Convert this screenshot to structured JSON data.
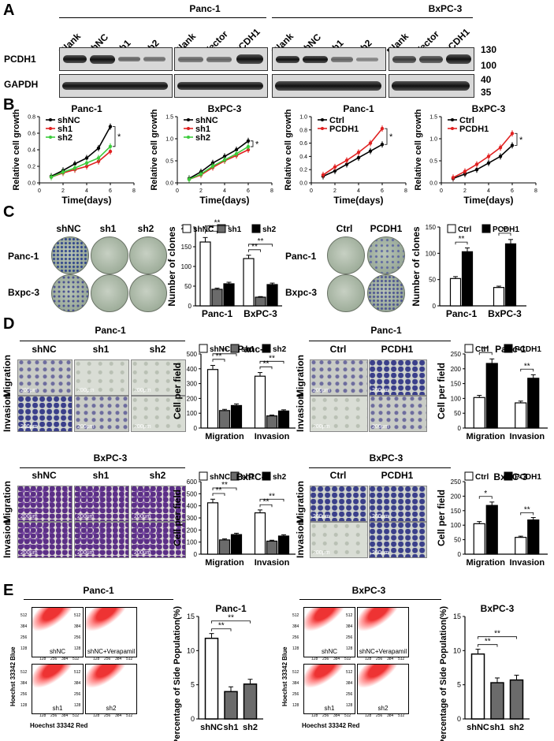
{
  "panels": {
    "A": "A",
    "B": "B",
    "C": "C",
    "D": "D",
    "E": "E"
  },
  "panelA": {
    "groups": [
      "Panc-1",
      "BxPC-3"
    ],
    "lanes_left": [
      "Blank",
      "shNC",
      "sh1",
      "sh2"
    ],
    "lanes_right": [
      "Blank",
      "Vector",
      "PCDH1"
    ],
    "rows": [
      "PCDH1",
      "GAPDH"
    ],
    "markers": [
      "130",
      "100",
      "40",
      "35"
    ]
  },
  "panelB": {
    "ylabel": "Relative cell growth",
    "xlabel": "Time(days)",
    "xticks": [
      "0",
      "2",
      "4",
      "6",
      "8"
    ],
    "charts": [
      {
        "title": "Panc-1",
        "yticks": [
          "0.0",
          "0.2",
          "0.4",
          "0.6",
          "0.8"
        ]
      },
      {
        "title": "BxPC-3",
        "yticks": [
          "0.0",
          "0.5",
          "1.0",
          "1.5"
        ]
      },
      {
        "title": "Panc-1",
        "yticks": [
          "0.0",
          "0.2",
          "0.4",
          "0.6",
          "0.8",
          "1.0"
        ]
      },
      {
        "title": "BxPC-3",
        "yticks": [
          "0.0",
          "0.5",
          "1.0",
          "1.5"
        ]
      }
    ],
    "legend_kd": [
      "shNC",
      "sh1",
      "sh2"
    ],
    "legend_oe": [
      "Ctrl",
      "PCDH1"
    ],
    "colors": {
      "shNC": "#000000",
      "sh1": "#e02020",
      "sh2": "#3ccc3c",
      "Ctrl": "#000000",
      "PCDH1": "#e02020"
    },
    "sig": "*"
  },
  "panelC": {
    "cols_kd": [
      "shNC",
      "sh1",
      "sh2"
    ],
    "cols_oe": [
      "Ctrl",
      "PCDH1"
    ],
    "rows": [
      "Panc-1",
      "Bxpc-3"
    ],
    "ylabel": "Number of clones",
    "xcats_kd": [
      "Panc-1",
      "BxPC-3"
    ],
    "xcats_oe": [
      "Panc-1",
      "BxPC-3"
    ],
    "yticks_kd": [
      "0",
      "50",
      "100",
      "150",
      "200"
    ],
    "yticks_oe": [
      "0",
      "50",
      "100",
      "150"
    ],
    "sig": "**"
  },
  "panelD": {
    "titles": [
      "Panc-1",
      "Panc-1",
      "BxPC-3",
      "BxPC-3"
    ],
    "cols_kd": [
      "shNC",
      "sh1",
      "sh2"
    ],
    "cols_oe": [
      "Ctrl",
      "PCDH1"
    ],
    "row_labels": [
      "Migration",
      "Invasion"
    ],
    "scale": "200μm",
    "ylabel": "Cell per field",
    "xcats": [
      "Migration",
      "Invasion"
    ],
    "yticks_kd": [
      "0",
      "100",
      "200",
      "300",
      "400",
      "500"
    ],
    "yticks_kd2": [
      "0",
      "100",
      "200",
      "300",
      "400",
      "500",
      "600"
    ],
    "yticks_oe": [
      "0",
      "50",
      "100",
      "150",
      "200",
      "250"
    ],
    "chart_titles": [
      "Panc-1",
      "Panc-1",
      "BxPC-3",
      "BxPC-3"
    ],
    "sig": "**",
    "sig1": "*"
  },
  "panelE": {
    "titles": [
      "Panc-1",
      "BxPC-3"
    ],
    "flow_labels": [
      "shNC",
      "shNC+Verapamil",
      "sh1",
      "sh2"
    ],
    "flow_ticks": [
      "128",
      "256",
      "384",
      "512"
    ],
    "flow_xlabel": "Hoechst 33342 Red",
    "flow_ylabel": "Hoechst 33342 Blue",
    "ylabel": "Percentage of Side Population(%)",
    "xcats": [
      "shNC",
      "sh1",
      "sh2"
    ],
    "yticks": [
      "0",
      "5",
      "10",
      "15"
    ],
    "chart_titles": [
      "Panc-1",
      "BxPC-3"
    ],
    "sig": "**"
  },
  "chart_data": [
    {
      "type": "line",
      "title": "Panc-1",
      "xlabel": "Time(days)",
      "ylabel": "Relative cell growth",
      "ylim": [
        0,
        0.8
      ],
      "x": [
        1,
        2,
        3,
        4,
        5,
        6
      ],
      "series": [
        {
          "name": "shNC",
          "values": [
            0.08,
            0.15,
            0.23,
            0.3,
            0.42,
            0.68
          ]
        },
        {
          "name": "sh1",
          "values": [
            0.07,
            0.12,
            0.16,
            0.2,
            0.26,
            0.38
          ]
        },
        {
          "name": "sh2",
          "values": [
            0.07,
            0.13,
            0.18,
            0.24,
            0.3,
            0.44
          ]
        }
      ]
    },
    {
      "type": "line",
      "title": "BxPC-3",
      "xlabel": "Time(days)",
      "ylabel": "Relative cell growth",
      "ylim": [
        0,
        1.5
      ],
      "x": [
        1,
        2,
        3,
        4,
        5,
        6
      ],
      "series": [
        {
          "name": "shNC",
          "values": [
            0.1,
            0.25,
            0.45,
            0.6,
            0.75,
            0.95
          ]
        },
        {
          "name": "sh1",
          "values": [
            0.08,
            0.18,
            0.35,
            0.5,
            0.62,
            0.75
          ]
        },
        {
          "name": "sh2",
          "values": [
            0.08,
            0.2,
            0.38,
            0.52,
            0.66,
            0.82
          ]
        }
      ]
    },
    {
      "type": "line",
      "title": "Panc-1",
      "xlabel": "Time(days)",
      "ylabel": "Relative cell growth",
      "ylim": [
        0,
        1.0
      ],
      "x": [
        1,
        2,
        3,
        4,
        5,
        6
      ],
      "series": [
        {
          "name": "Ctrl",
          "values": [
            0.1,
            0.18,
            0.28,
            0.38,
            0.48,
            0.58
          ]
        },
        {
          "name": "PCDH1",
          "values": [
            0.12,
            0.24,
            0.34,
            0.46,
            0.6,
            0.82
          ]
        }
      ]
    },
    {
      "type": "line",
      "title": "BxPC-3",
      "xlabel": "Time(days)",
      "ylabel": "Relative cell growth",
      "ylim": [
        0,
        1.5
      ],
      "x": [
        1,
        2,
        3,
        4,
        5,
        6
      ],
      "series": [
        {
          "name": "Ctrl",
          "values": [
            0.1,
            0.2,
            0.3,
            0.45,
            0.6,
            0.85
          ]
        },
        {
          "name": "PCDH1",
          "values": [
            0.12,
            0.26,
            0.42,
            0.6,
            0.8,
            1.12
          ]
        }
      ]
    },
    {
      "type": "bar",
      "ylabel": "Number of clones",
      "categories": [
        "Panc-1",
        "BxPC-3"
      ],
      "ylim": [
        0,
        200
      ],
      "series": [
        {
          "name": "shNC",
          "values": [
            162,
            120
          ]
        },
        {
          "name": "sh1",
          "values": [
            42,
            22
          ]
        },
        {
          "name": "sh2",
          "values": [
            56,
            54
          ]
        }
      ]
    },
    {
      "type": "bar",
      "ylabel": "Number of clones",
      "categories": [
        "Panc-1",
        "BxPC-3"
      ],
      "ylim": [
        0,
        150
      ],
      "series": [
        {
          "name": "Ctrl",
          "values": [
            52,
            35
          ]
        },
        {
          "name": "PCDH1",
          "values": [
            103,
            118
          ]
        }
      ]
    },
    {
      "type": "bar",
      "title": "Panc-1",
      "ylabel": "Cell per field",
      "categories": [
        "Migration",
        "Invasion"
      ],
      "ylim": [
        0,
        500
      ],
      "series": [
        {
          "name": "shNC",
          "values": [
            395,
            350
          ]
        },
        {
          "name": "sh1",
          "values": [
            118,
            82
          ]
        },
        {
          "name": "sh2",
          "values": [
            152,
            115
          ]
        }
      ]
    },
    {
      "type": "bar",
      "title": "Panc-1",
      "ylabel": "Cell per field",
      "categories": [
        "Migration",
        "Invasion"
      ],
      "ylim": [
        0,
        250
      ],
      "series": [
        {
          "name": "Ctrl",
          "values": [
            103,
            85
          ]
        },
        {
          "name": "PCDH1",
          "values": [
            218,
            168
          ]
        }
      ]
    },
    {
      "type": "bar",
      "title": "BxPC-3",
      "ylabel": "Cell per field",
      "categories": [
        "Migration",
        "Invasion"
      ],
      "ylim": [
        0,
        600
      ],
      "series": [
        {
          "name": "shNC",
          "values": [
            425,
            342
          ]
        },
        {
          "name": "sh1",
          "values": [
            118,
            108
          ]
        },
        {
          "name": "sh2",
          "values": [
            162,
            150
          ]
        }
      ]
    },
    {
      "type": "bar",
      "title": "BxPC-3",
      "ylabel": "Cell per field",
      "categories": [
        "Migration",
        "Invasion"
      ],
      "ylim": [
        0,
        250
      ],
      "series": [
        {
          "name": "Ctrl",
          "values": [
            105,
            58
          ]
        },
        {
          "name": "PCDH1",
          "values": [
            168,
            118
          ]
        }
      ]
    },
    {
      "type": "bar",
      "title": "Panc-1",
      "ylabel": "Percentage of Side Population(%)",
      "categories": [
        "shNC",
        "sh1",
        "sh2"
      ],
      "ylim": [
        0,
        15
      ],
      "values": [
        11.8,
        4.0,
        5.1
      ]
    },
    {
      "type": "bar",
      "title": "BxPC-3",
      "ylabel": "Percentage of Side Population(%)",
      "categories": [
        "shNC",
        "sh1",
        "sh2"
      ],
      "ylim": [
        0,
        15
      ],
      "values": [
        9.5,
        5.3,
        5.7
      ]
    }
  ]
}
